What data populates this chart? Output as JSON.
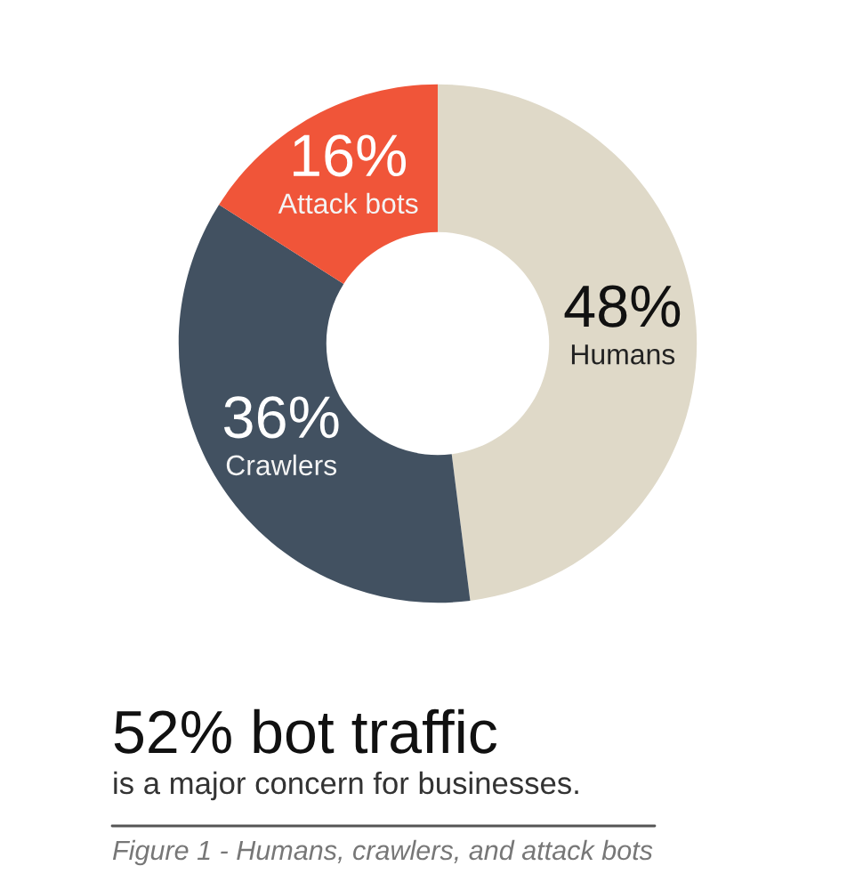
{
  "chart_data": {
    "type": "donut",
    "title": "52% bot traffic",
    "subtitle": "is a major concern for businesses.",
    "categories": [
      "Humans",
      "Crawlers",
      "Attack bots"
    ],
    "values": [
      48,
      36,
      16
    ],
    "colors": [
      "#dfd9c8",
      "#425161",
      "#f05539"
    ],
    "value_labels": [
      "48%",
      "36%",
      "16%"
    ],
    "annotations": [
      "Figure 1 - Humans, crawlers, and attack bots"
    ]
  }
}
